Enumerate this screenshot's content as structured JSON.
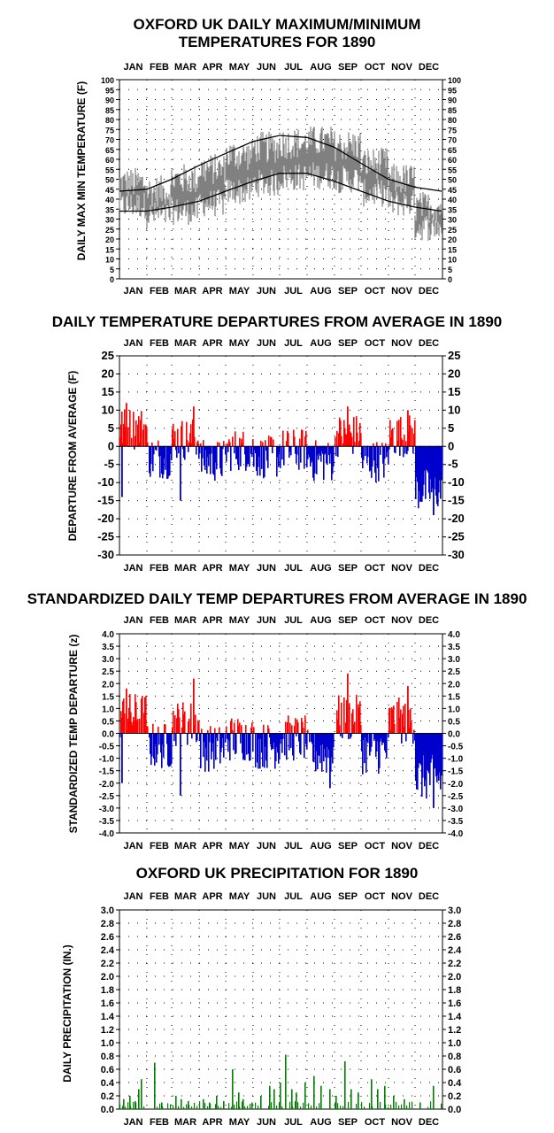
{
  "colors": {
    "temp_band": "#808080",
    "normals": "#000000",
    "positive": "#ff0000",
    "negative": "#0000cc",
    "precip": "#008000",
    "grid": "#000000"
  },
  "months": [
    "JAN",
    "FEB",
    "MAR",
    "APR",
    "MAY",
    "JUN",
    "JUL",
    "AUG",
    "SEP",
    "OCT",
    "NOV",
    "DEC"
  ],
  "chart_data": [
    {
      "type": "line",
      "title": "OXFORD UK DAILY MAXIMUM/MINIMUM\nTEMPERATURES FOR 1890",
      "title_lines": [
        "OXFORD UK DAILY MAXIMUM/MINIMUM",
        "TEMPERATURES FOR 1890"
      ],
      "ylabel": "DAILY MAX MIN TEMPERATURE (F)",
      "ylim": [
        0,
        100
      ],
      "yticks": [
        "0",
        "5",
        "10",
        "15",
        "20",
        "25",
        "30",
        "35",
        "40",
        "45",
        "50",
        "55",
        "60",
        "65",
        "70",
        "75",
        "80",
        "85",
        "90",
        "95",
        "100"
      ],
      "grid": true,
      "series": [
        {
          "name": "",
          "note_kind": "daily max/min band",
          "monthly_max": [
            48,
            44,
            50,
            55,
            62,
            66,
            68,
            69,
            67,
            58,
            50,
            36
          ],
          "monthly_min": [
            37,
            32,
            34,
            38,
            44,
            48,
            51,
            52,
            50,
            43,
            38,
            26
          ]
        },
        {
          "name": "",
          "note_kind": "normal max",
          "x": [
            1,
            32,
            60,
            91,
            121,
            152,
            182,
            213,
            244,
            274,
            305,
            335,
            365
          ],
          "values": [
            44,
            45,
            50,
            57,
            63,
            69,
            72,
            71,
            66,
            58,
            50,
            46,
            44
          ]
        },
        {
          "name": "",
          "note_kind": "normal min",
          "x": [
            1,
            32,
            60,
            91,
            121,
            152,
            182,
            213,
            244,
            274,
            305,
            335,
            365
          ],
          "values": [
            34,
            34,
            36,
            39,
            44,
            49,
            53,
            53,
            49,
            44,
            39,
            36,
            34
          ]
        }
      ]
    },
    {
      "type": "bar",
      "title": "DAILY TEMPERATURE DEPARTURES FROM AVERAGE IN 1890",
      "ylabel": "DEPARTURE FROM AVERAGE (F)",
      "ylim": [
        -30,
        25
      ],
      "yticks": [
        "-30",
        "-25",
        "-20",
        "-15",
        "-10",
        "-5",
        "0",
        "5",
        "10",
        "15",
        "20",
        "25"
      ],
      "grid": true,
      "series": [
        {
          "name": "",
          "x_month_start_day": [
            1,
            32,
            60,
            91,
            121,
            152,
            182,
            213,
            244,
            274,
            305,
            335
          ],
          "monthly_mean_departure": [
            5,
            -3,
            2,
            -4,
            -1,
            -3,
            -1,
            -4,
            3,
            -4,
            3,
            -12
          ],
          "notable_values": {
            "jan_peak": 12,
            "jan_low": -14,
            "mar_low": -15,
            "mar_peak": 11,
            "sep_peak": 11,
            "nov_peak": 10,
            "dec_low": -19
          }
        }
      ]
    },
    {
      "type": "bar",
      "title": "STANDARDIZED DAILY TEMP DEPARTURES FROM AVERAGE IN 1890",
      "ylabel": "STANDARDIZED TEMP DEPARTURE (z)",
      "ylim": [
        -4.0,
        4.0
      ],
      "yticks": [
        "-4.0",
        "-3.5",
        "-3.0",
        "-2.5",
        "-2.0",
        "-1.5",
        "-1.0",
        "-0.5",
        "0.0",
        "0.5",
        "1.0",
        "1.5",
        "2.0",
        "2.5",
        "3.0",
        "3.5",
        "4.0"
      ],
      "grid": true,
      "series": [
        {
          "name": "",
          "monthly_mean_departure": [
            0.7,
            -0.5,
            0.4,
            -0.6,
            -0.2,
            -0.5,
            -0.2,
            -0.8,
            0.6,
            -0.7,
            0.5,
            -1.8
          ],
          "notable_values": {
            "jan_peak": 1.8,
            "jan_low": -2.0,
            "mar_low": -2.5,
            "mar_peak": 2.2,
            "aug_low": -2.2,
            "sep_peak": 2.4,
            "nov_peak": 1.9,
            "dec_low": -3.0
          }
        }
      ]
    },
    {
      "type": "bar",
      "title": "OXFORD UK PRECIPITATION FOR 1890",
      "ylabel": "DAILY PRECIPITATION (IN.)",
      "ylim": [
        0.0,
        3.0
      ],
      "yticks": [
        "0.0",
        "0.2",
        "0.4",
        "0.6",
        "0.8",
        "1.0",
        "1.2",
        "1.4",
        "1.6",
        "1.8",
        "2.0",
        "2.2",
        "2.4",
        "2.6",
        "2.8",
        "3.0"
      ],
      "grid": true,
      "series": [
        {
          "name": "",
          "days": [
            5,
            12,
            18,
            22,
            25,
            40,
            48,
            64,
            70,
            78,
            95,
            102,
            110,
            118,
            128,
            135,
            140,
            150,
            160,
            170,
            175,
            182,
            188,
            195,
            200,
            210,
            220,
            228,
            238,
            245,
            255,
            262,
            270,
            285,
            292,
            300,
            310,
            322,
            340,
            355
          ],
          "values": [
            0.15,
            0.2,
            0.12,
            0.3,
            0.45,
            0.7,
            0.1,
            0.2,
            0.15,
            0.12,
            0.15,
            0.1,
            0.2,
            0.12,
            0.6,
            0.25,
            0.15,
            0.1,
            0.2,
            0.35,
            0.3,
            0.4,
            0.82,
            0.3,
            0.25,
            0.4,
            0.5,
            0.35,
            0.3,
            0.2,
            0.72,
            0.3,
            0.25,
            0.45,
            0.3,
            0.35,
            0.2,
            0.15,
            0.1,
            0.35
          ]
        }
      ]
    }
  ]
}
